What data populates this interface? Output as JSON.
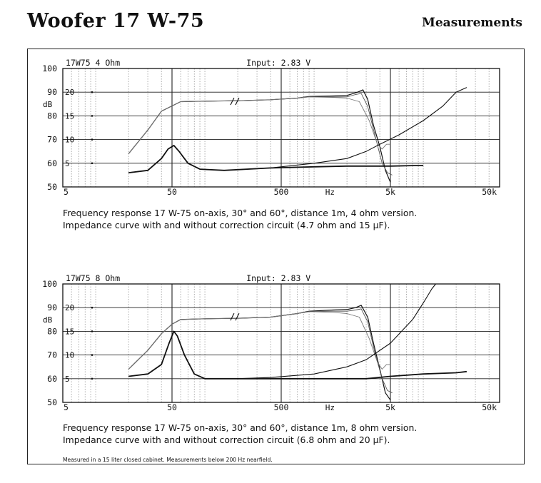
{
  "header": {
    "title": "Woofer 17 W-75",
    "section": "Measurements"
  },
  "footnote": "Measured in a 15 liter closed cabinet. Measurements below 200 Hz nearfield.",
  "chart_data": [
    {
      "type": "line",
      "header_left": "17W75 4 Ohm",
      "header_right": "Input: 2.83 V",
      "ylabel": "dB",
      "xunit": "Hz",
      "xscale": "log",
      "xlim": [
        5,
        50000
      ],
      "ylim": [
        50,
        100
      ],
      "x_ticks": [
        {
          "v": 5,
          "l": "5"
        },
        {
          "v": 50,
          "l": "50"
        },
        {
          "v": 500,
          "l": "500"
        },
        {
          "v": 5000,
          "l": "5k"
        },
        {
          "v": 50000,
          "l": "50k"
        }
      ],
      "y_ticks": [
        50,
        60,
        70,
        80,
        90,
        100
      ],
      "impedance_ticks": [
        {
          "y": 90,
          "l": "20"
        },
        {
          "y": 80,
          "l": "15"
        },
        {
          "y": 70,
          "l": "10"
        },
        {
          "y": 60,
          "l": "5"
        }
      ],
      "caption": [
        "Frequency response 17 W-75 on-axis, 30° and 60°, distance 1m, 4 ohm version.",
        "Impedance  curve with and without correction circuit (4.7 ohm and 15 µF)."
      ],
      "series": [
        {
          "points": [
            [
              20,
              64
            ],
            [
              30,
              74
            ],
            [
              40,
              82
            ],
            [
              60,
              86
            ],
            [
              100,
              86.2
            ],
            [
              200,
              86.4
            ],
            [
              400,
              86.8
            ],
            [
              700,
              87.5
            ],
            [
              900,
              88.2
            ],
            [
              1500,
              88.4
            ],
            [
              2000,
              88.6
            ],
            [
              2500,
              90
            ],
            [
              2800,
              91
            ],
            [
              3100,
              87
            ],
            [
              3500,
              76
            ],
            [
              4000,
              67
            ],
            [
              4500,
              57
            ],
            [
              5000,
              52
            ]
          ]
        },
        {
          "points": [
            [
              20,
              64
            ],
            [
              30,
              74
            ],
            [
              40,
              82
            ],
            [
              60,
              86
            ],
            [
              100,
              86.2
            ],
            [
              200,
              86.4
            ],
            [
              400,
              86.8
            ],
            [
              700,
              87.5
            ],
            [
              900,
              88
            ],
            [
              1500,
              88
            ],
            [
              2000,
              88
            ],
            [
              2400,
              89
            ],
            [
              2700,
              89.5
            ],
            [
              3100,
              84
            ],
            [
              3600,
              72
            ],
            [
              4200,
              60
            ],
            [
              4700,
              56
            ],
            [
              5200,
              55
            ]
          ]
        },
        {
          "points": [
            [
              20,
              64
            ],
            [
              30,
              74
            ],
            [
              40,
              82
            ],
            [
              60,
              86
            ],
            [
              100,
              86.2
            ],
            [
              200,
              86.4
            ],
            [
              400,
              86.8
            ],
            [
              700,
              87.5
            ],
            [
              900,
              88
            ],
            [
              1500,
              87.8
            ],
            [
              2000,
              87.5
            ],
            [
              2600,
              86
            ],
            [
              3200,
              78
            ],
            [
              3800,
              68
            ],
            [
              4200,
              66
            ],
            [
              4600,
              68
            ],
            [
              5000,
              68
            ]
          ]
        },
        {
          "points": [
            [
              20,
              56
            ],
            [
              30,
              57
            ],
            [
              40,
              62
            ],
            [
              46,
              66
            ],
            [
              52,
              67.5
            ],
            [
              58,
              65
            ],
            [
              70,
              60
            ],
            [
              90,
              57.5
            ],
            [
              150,
              57
            ],
            [
              400,
              58
            ],
            [
              1000,
              60
            ],
            [
              2000,
              62
            ],
            [
              3000,
              65
            ],
            [
              4000,
              68
            ],
            [
              6000,
              72
            ],
            [
              10000,
              78
            ],
            [
              15000,
              84
            ],
            [
              20000,
              90
            ],
            [
              25000,
              92
            ]
          ]
        },
        {
          "points": [
            [
              20,
              56
            ],
            [
              30,
              57
            ],
            [
              40,
              62
            ],
            [
              46,
              66
            ],
            [
              52,
              67.5
            ],
            [
              58,
              65
            ],
            [
              70,
              60
            ],
            [
              90,
              57.5
            ],
            [
              150,
              57
            ],
            [
              400,
              58
            ],
            [
              1000,
              58.5
            ],
            [
              2000,
              58.8
            ],
            [
              3000,
              58.8
            ],
            [
              5000,
              58.8
            ],
            [
              8000,
              59
            ],
            [
              10000,
              59
            ]
          ]
        }
      ]
    },
    {
      "type": "line",
      "header_left": "17W75 8 Ohm",
      "header_right": "Input: 2.83 V",
      "ylabel": "dB",
      "xunit": "Hz",
      "xscale": "log",
      "xlim": [
        5,
        50000
      ],
      "ylim": [
        50,
        100
      ],
      "x_ticks": [
        {
          "v": 5,
          "l": "5"
        },
        {
          "v": 50,
          "l": "50"
        },
        {
          "v": 500,
          "l": "500"
        },
        {
          "v": 5000,
          "l": "5k"
        },
        {
          "v": 50000,
          "l": "50k"
        }
      ],
      "y_ticks": [
        50,
        60,
        70,
        80,
        90,
        100
      ],
      "impedance_ticks": [
        {
          "y": 90,
          "l": "20"
        },
        {
          "y": 80,
          "l": "15"
        },
        {
          "y": 70,
          "l": "10"
        },
        {
          "y": 60,
          "l": "5"
        }
      ],
      "caption": [
        "Frequency response 17 W-75 on-axis, 30° and 60°, distance 1m, 8 ohm version.",
        "Impedance  curve with and without correction circuit (6.8 ohm and 20 µF)."
      ],
      "series": [
        {
          "points": [
            [
              20,
              64
            ],
            [
              30,
              72
            ],
            [
              40,
              79
            ],
            [
              50,
              83
            ],
            [
              60,
              85
            ],
            [
              100,
              85.3
            ],
            [
              200,
              85.5
            ],
            [
              400,
              86
            ],
            [
              700,
              87.5
            ],
            [
              900,
              88.5
            ],
            [
              1500,
              89
            ],
            [
              2000,
              89.2
            ],
            [
              2400,
              90
            ],
            [
              2700,
              91
            ],
            [
              3100,
              86
            ],
            [
              3500,
              75
            ],
            [
              4000,
              64
            ],
            [
              4500,
              54
            ],
            [
              5000,
              51
            ]
          ]
        },
        {
          "points": [
            [
              20,
              64
            ],
            [
              30,
              72
            ],
            [
              40,
              79
            ],
            [
              50,
              83
            ],
            [
              60,
              85
            ],
            [
              100,
              85.3
            ],
            [
              200,
              85.5
            ],
            [
              400,
              86
            ],
            [
              700,
              87.5
            ],
            [
              900,
              88.3
            ],
            [
              1500,
              88.5
            ],
            [
              2000,
              88.5
            ],
            [
              2400,
              89
            ],
            [
              2700,
              89.5
            ],
            [
              3100,
              84
            ],
            [
              3600,
              71
            ],
            [
              4200,
              60
            ],
            [
              4700,
              55
            ],
            [
              5200,
              54
            ]
          ]
        },
        {
          "points": [
            [
              20,
              64
            ],
            [
              30,
              72
            ],
            [
              40,
              79
            ],
            [
              50,
              83
            ],
            [
              60,
              85
            ],
            [
              100,
              85.3
            ],
            [
              200,
              85.5
            ],
            [
              400,
              86
            ],
            [
              700,
              87.5
            ],
            [
              900,
              88.3
            ],
            [
              1500,
              88
            ],
            [
              2000,
              87.5
            ],
            [
              2600,
              86
            ],
            [
              3200,
              77
            ],
            [
              3800,
              67
            ],
            [
              4200,
              64
            ],
            [
              4600,
              66
            ],
            [
              5000,
              66
            ]
          ]
        },
        {
          "points": [
            [
              20,
              61
            ],
            [
              30,
              62
            ],
            [
              40,
              66
            ],
            [
              47,
              75
            ],
            [
              52,
              80
            ],
            [
              56,
              78
            ],
            [
              65,
              70
            ],
            [
              80,
              62
            ],
            [
              100,
              60
            ],
            [
              200,
              60
            ],
            [
              400,
              60.5
            ],
            [
              1000,
              62
            ],
            [
              2000,
              65
            ],
            [
              3000,
              68
            ],
            [
              5000,
              75
            ],
            [
              8000,
              85
            ],
            [
              10000,
              92
            ],
            [
              12000,
              98
            ],
            [
              13000,
              100
            ]
          ]
        },
        {
          "points": [
            [
              20,
              61
            ],
            [
              30,
              62
            ],
            [
              40,
              66
            ],
            [
              47,
              75
            ],
            [
              52,
              80
            ],
            [
              56,
              78
            ],
            [
              65,
              70
            ],
            [
              80,
              62
            ],
            [
              100,
              60
            ],
            [
              200,
              60
            ],
            [
              400,
              60
            ],
            [
              1000,
              60
            ],
            [
              2000,
              60
            ],
            [
              3000,
              60
            ],
            [
              5000,
              61
            ],
            [
              10000,
              62
            ],
            [
              20000,
              62.5
            ],
            [
              25000,
              63
            ]
          ]
        }
      ]
    }
  ]
}
